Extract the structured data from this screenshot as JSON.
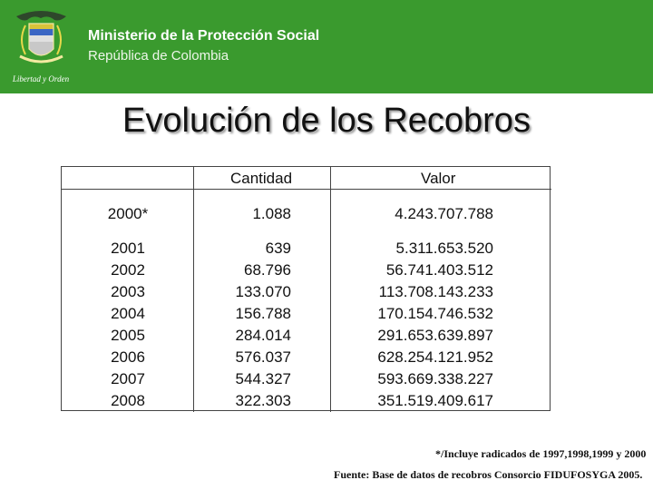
{
  "header": {
    "ministry": "Ministerio de la Protección Social",
    "republic": "República de Colombia",
    "motto": "Libertad y Orden",
    "background_color": "#3a9a2e",
    "logo_icon": "coat-of-arms-icon"
  },
  "title": "Evolución de los Recobros",
  "table": {
    "headers": [
      "",
      "Cantidad",
      "Valor"
    ],
    "first_row": {
      "year": "2000*",
      "cantidad": "1.088",
      "valor": "4.243.707.788"
    },
    "rows": [
      {
        "year": "2001",
        "cantidad": "639",
        "valor": "5.311.653.520"
      },
      {
        "year": "2002",
        "cantidad": "68.796",
        "valor": "56.741.403.512"
      },
      {
        "year": "2003",
        "cantidad": "133.070",
        "valor": "113.708.143.233"
      },
      {
        "year": "2004",
        "cantidad": "156.788",
        "valor": "170.154.746.532"
      },
      {
        "year": "2005",
        "cantidad": "284.014",
        "valor": "291.653.639.897"
      },
      {
        "year": "2006",
        "cantidad": "576.037",
        "valor": "628.254.121.952"
      },
      {
        "year": "2007",
        "cantidad": "544.327",
        "valor": "593.669.338.227"
      },
      {
        "year": "2008",
        "cantidad": "322.303",
        "valor": "351.519.409.617"
      }
    ]
  },
  "footnotes": {
    "note1": "*/Incluye radicados de 1997,1998,1999 y 2000",
    "note2": "Fuente: Base de datos de recobros Consorcio FIDUFOSYGA 2005."
  }
}
